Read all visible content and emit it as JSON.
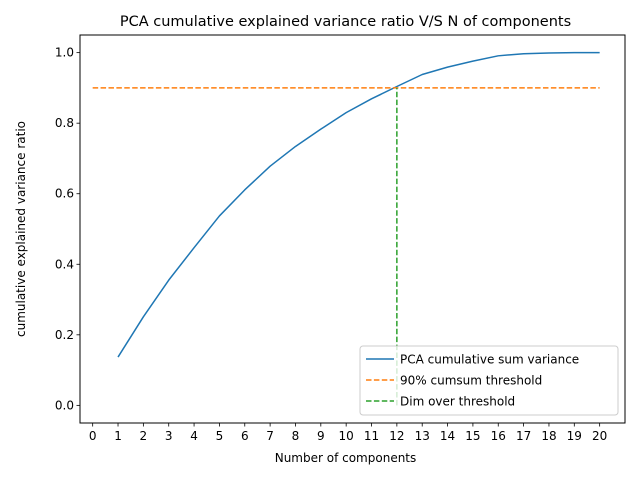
{
  "chart_data": {
    "type": "line",
    "title": "PCA cumulative explained variance ratio V/S N of components",
    "xlabel": "Number of components",
    "ylabel": "cumulative explained variance ratio",
    "xlim": [
      -0.5,
      21
    ],
    "ylim": [
      -0.05,
      1.05
    ],
    "xticks": [
      0,
      1,
      2,
      3,
      4,
      5,
      6,
      7,
      8,
      9,
      10,
      11,
      12,
      13,
      14,
      15,
      16,
      17,
      18,
      19,
      20
    ],
    "yticks": [
      0.0,
      0.2,
      0.4,
      0.6,
      0.8,
      1.0
    ],
    "ytick_labels": [
      "0.0",
      "0.2",
      "0.4",
      "0.6",
      "0.8",
      "1.0"
    ],
    "series": [
      {
        "name": "PCA cumulative sum variance",
        "color": "#1f77b4",
        "style": "solid",
        "x": [
          1,
          2,
          3,
          4,
          5,
          6,
          7,
          8,
          9,
          10,
          11,
          12,
          13,
          14,
          15,
          16,
          17,
          18,
          19,
          20
        ],
        "values": [
          0.137,
          0.251,
          0.355,
          0.447,
          0.537,
          0.611,
          0.678,
          0.734,
          0.783,
          0.83,
          0.869,
          0.904,
          0.938,
          0.959,
          0.976,
          0.991,
          0.997,
          0.999,
          1.0,
          1.0
        ]
      },
      {
        "name": "90% cumsum threshold",
        "color": "#ff7f0e",
        "style": "dashed",
        "x": [
          0,
          20
        ],
        "values": [
          0.9,
          0.9
        ]
      },
      {
        "name": "Dim over threshold",
        "color": "#2ca02c",
        "style": "dashed",
        "x": [
          12,
          12
        ],
        "values": [
          0.0,
          0.9
        ]
      }
    ],
    "legend_position": "lower-right"
  }
}
